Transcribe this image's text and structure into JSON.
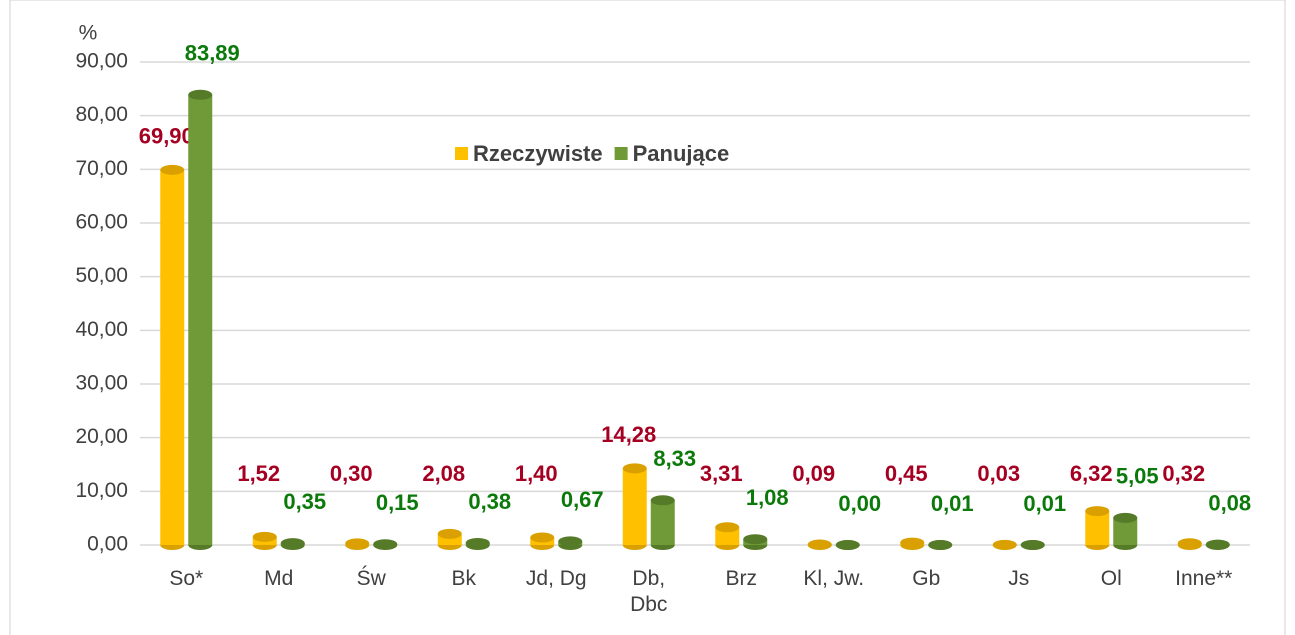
{
  "chart_data": {
    "type": "bar",
    "y_axis_label": "%",
    "categories": [
      "So*",
      "Md",
      "Św",
      "Bk",
      "Jd, Dg",
      "Db, Dbc",
      "Brz",
      "Kl, Jw.",
      "Gb",
      "Js",
      "Ol",
      "Inne**"
    ],
    "series": [
      {
        "name": "Rzeczywiste",
        "color": "#FFC000",
        "label_color": "#A50021",
        "values": [
          69.9,
          1.52,
          0.3,
          2.08,
          1.4,
          14.28,
          3.31,
          0.09,
          0.45,
          0.03,
          6.32,
          0.32
        ],
        "value_labels": [
          "69,90",
          "1,52",
          "0,30",
          "2,08",
          "1,40",
          "14,28",
          "3,31",
          "0,09",
          "0,45",
          "0,03",
          "6,32",
          "0,32"
        ]
      },
      {
        "name": "Panujące",
        "color": "#6F9A37",
        "label_color": "#0B7A0B",
        "values": [
          83.89,
          0.35,
          0.15,
          0.38,
          0.67,
          8.33,
          1.08,
          0.0,
          0.01,
          0.01,
          5.05,
          0.08
        ],
        "value_labels": [
          "83,89",
          "0,35",
          "0,15",
          "0,38",
          "0,67",
          "8,33",
          "1,08",
          "0,00",
          "0,01",
          "0,01",
          "5,05",
          "0,08"
        ]
      }
    ],
    "ylim": [
      0,
      90
    ],
    "yticks": [
      {
        "value": 0,
        "label": "0,00"
      },
      {
        "value": 10,
        "label": "10,00"
      },
      {
        "value": 20,
        "label": "20,00"
      },
      {
        "value": 30,
        "label": "30,00"
      },
      {
        "value": 40,
        "label": "40,00"
      },
      {
        "value": 50,
        "label": "50,00"
      },
      {
        "value": 60,
        "label": "60,00"
      },
      {
        "value": 70,
        "label": "70,00"
      },
      {
        "value": 80,
        "label": "80,00"
      },
      {
        "value": 90,
        "label": "90,00"
      }
    ],
    "grid": true,
    "legend": "top"
  }
}
